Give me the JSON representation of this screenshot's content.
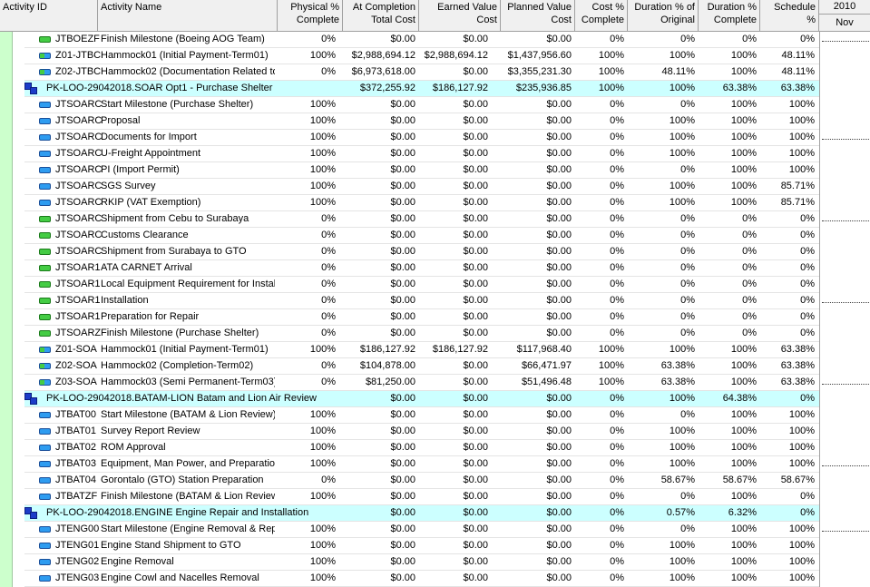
{
  "columns": {
    "activity_id": "Activity ID",
    "activity_name": "Activity Name",
    "physical_pct": [
      "Physical %",
      "Complete"
    ],
    "at_completion": [
      "At Completion",
      "Total Cost"
    ],
    "earned_value": [
      "Earned Value",
      "Cost"
    ],
    "planned_value": [
      "Planned Value",
      "Cost"
    ],
    "cost_pct": [
      "Cost %",
      "Complete"
    ],
    "duration_orig": [
      "Duration % of",
      "Original"
    ],
    "duration_comp": [
      "Duration %",
      "Complete"
    ],
    "schedule": [
      "Schedule",
      "%"
    ]
  },
  "timescale": {
    "year": "2010",
    "month": "Nov"
  },
  "colors": {
    "wbs_row": "#ccffff",
    "header": "#f0f0f0",
    "milestone": "#44cc44",
    "task": "#2e9cf0",
    "wbs_icon": "#1c3cc8"
  },
  "rows": [
    {
      "type": "milestone",
      "id": "JTBOEZF",
      "name": "Finish Milestone (Boeing AOG Team)",
      "pct": "0%",
      "atc": "$0.00",
      "ev": "$0.00",
      "pv": "$0.00",
      "cost": "0%",
      "dorig": "0%",
      "dcomp": "0%",
      "sched": "0%"
    },
    {
      "type": "hammock",
      "id": "Z01-JTBC",
      "name": "Hammock01 (Initial Payment-Term01)",
      "pct": "100%",
      "atc": "$2,988,694.12",
      "ev": "$2,988,694.12",
      "pv": "$1,437,956.60",
      "cost": "100%",
      "dorig": "100%",
      "dcomp": "100%",
      "sched": "48.11%"
    },
    {
      "type": "hammock",
      "id": "Z02-JTBC",
      "name": "Hammock02 (Documentation Related to",
      "pct": "0%",
      "atc": "$6,973,618.00",
      "ev": "$0.00",
      "pv": "$3,355,231.30",
      "cost": "100%",
      "dorig": "48.11%",
      "dcomp": "100%",
      "sched": "48.11%"
    },
    {
      "type": "wbs",
      "id": "PK-LOO-29042018.SOAR  Opt1 - Purchase Shelter",
      "name": "",
      "pct": "",
      "atc": "$372,255.92",
      "ev": "$186,127.92",
      "pv": "$235,936.85",
      "cost": "100%",
      "dorig": "100%",
      "dcomp": "63.38%",
      "sched": "63.38%"
    },
    {
      "type": "task",
      "id": "JTSOARC",
      "name": "Start Milestone (Purchase Shelter)",
      "pct": "100%",
      "atc": "$0.00",
      "ev": "$0.00",
      "pv": "$0.00",
      "cost": "0%",
      "dorig": "0%",
      "dcomp": "100%",
      "sched": "100%"
    },
    {
      "type": "task",
      "id": "JTSOARC",
      "name": "Proposal",
      "pct": "100%",
      "atc": "$0.00",
      "ev": "$0.00",
      "pv": "$0.00",
      "cost": "0%",
      "dorig": "100%",
      "dcomp": "100%",
      "sched": "100%"
    },
    {
      "type": "task",
      "id": "JTSOARC",
      "name": "Documents for Import",
      "pct": "100%",
      "atc": "$0.00",
      "ev": "$0.00",
      "pv": "$0.00",
      "cost": "0%",
      "dorig": "100%",
      "dcomp": "100%",
      "sched": "100%"
    },
    {
      "type": "task",
      "id": "JTSOARC",
      "name": "U-Freight Appointment",
      "pct": "100%",
      "atc": "$0.00",
      "ev": "$0.00",
      "pv": "$0.00",
      "cost": "0%",
      "dorig": "100%",
      "dcomp": "100%",
      "sched": "100%"
    },
    {
      "type": "task",
      "id": "JTSOARC",
      "name": "PI (Import Permit)",
      "pct": "100%",
      "atc": "$0.00",
      "ev": "$0.00",
      "pv": "$0.00",
      "cost": "0%",
      "dorig": "0%",
      "dcomp": "100%",
      "sched": "100%"
    },
    {
      "type": "task",
      "id": "JTSOARC",
      "name": "SGS Survey",
      "pct": "100%",
      "atc": "$0.00",
      "ev": "$0.00",
      "pv": "$0.00",
      "cost": "0%",
      "dorig": "100%",
      "dcomp": "100%",
      "sched": "85.71%"
    },
    {
      "type": "task",
      "id": "JTSOARC",
      "name": "RKIP (VAT Exemption)",
      "pct": "100%",
      "atc": "$0.00",
      "ev": "$0.00",
      "pv": "$0.00",
      "cost": "0%",
      "dorig": "100%",
      "dcomp": "100%",
      "sched": "85.71%"
    },
    {
      "type": "milestone",
      "id": "JTSOARC",
      "name": "Shipment from Cebu to Surabaya",
      "pct": "0%",
      "atc": "$0.00",
      "ev": "$0.00",
      "pv": "$0.00",
      "cost": "0%",
      "dorig": "0%",
      "dcomp": "0%",
      "sched": "0%"
    },
    {
      "type": "milestone",
      "id": "JTSOARC",
      "name": "Customs Clearance",
      "pct": "0%",
      "atc": "$0.00",
      "ev": "$0.00",
      "pv": "$0.00",
      "cost": "0%",
      "dorig": "0%",
      "dcomp": "0%",
      "sched": "0%"
    },
    {
      "type": "milestone",
      "id": "JTSOARC",
      "name": "Shipment from Surabaya to GTO",
      "pct": "0%",
      "atc": "$0.00",
      "ev": "$0.00",
      "pv": "$0.00",
      "cost": "0%",
      "dorig": "0%",
      "dcomp": "0%",
      "sched": "0%"
    },
    {
      "type": "milestone",
      "id": "JTSOAR1",
      "name": "ATA CARNET Arrival",
      "pct": "0%",
      "atc": "$0.00",
      "ev": "$0.00",
      "pv": "$0.00",
      "cost": "0%",
      "dorig": "0%",
      "dcomp": "0%",
      "sched": "0%"
    },
    {
      "type": "milestone",
      "id": "JTSOAR1",
      "name": "Local Equipment Requirement for Installa",
      "pct": "0%",
      "atc": "$0.00",
      "ev": "$0.00",
      "pv": "$0.00",
      "cost": "0%",
      "dorig": "0%",
      "dcomp": "0%",
      "sched": "0%"
    },
    {
      "type": "milestone",
      "id": "JTSOAR1",
      "name": "Installation",
      "pct": "0%",
      "atc": "$0.00",
      "ev": "$0.00",
      "pv": "$0.00",
      "cost": "0%",
      "dorig": "0%",
      "dcomp": "0%",
      "sched": "0%"
    },
    {
      "type": "milestone",
      "id": "JTSOAR1",
      "name": "Preparation for Repair",
      "pct": "0%",
      "atc": "$0.00",
      "ev": "$0.00",
      "pv": "$0.00",
      "cost": "0%",
      "dorig": "0%",
      "dcomp": "0%",
      "sched": "0%"
    },
    {
      "type": "milestone",
      "id": "JTSOARZ",
      "name": "Finish Milestone (Purchase Shelter)",
      "pct": "0%",
      "atc": "$0.00",
      "ev": "$0.00",
      "pv": "$0.00",
      "cost": "0%",
      "dorig": "0%",
      "dcomp": "0%",
      "sched": "0%"
    },
    {
      "type": "hammock",
      "id": "Z01-SOA",
      "name": "Hammock01 (Initial Payment-Term01)",
      "pct": "100%",
      "atc": "$186,127.92",
      "ev": "$186,127.92",
      "pv": "$117,968.40",
      "cost": "100%",
      "dorig": "100%",
      "dcomp": "100%",
      "sched": "63.38%"
    },
    {
      "type": "hammock",
      "id": "Z02-SOA",
      "name": "Hammock02 (Completion-Term02)",
      "pct": "0%",
      "atc": "$104,878.00",
      "ev": "$0.00",
      "pv": "$66,471.97",
      "cost": "100%",
      "dorig": "63.38%",
      "dcomp": "100%",
      "sched": "63.38%"
    },
    {
      "type": "hammock",
      "id": "Z03-SOA",
      "name": "Hammock03 (Semi Permanent-Term03)",
      "pct": "0%",
      "atc": "$81,250.00",
      "ev": "$0.00",
      "pv": "$51,496.48",
      "cost": "100%",
      "dorig": "63.38%",
      "dcomp": "100%",
      "sched": "63.38%"
    },
    {
      "type": "wbs",
      "id": "PK-LOO-29042018.BATAM-LION  Batam and Lion Air Review",
      "name": "",
      "pct": "",
      "atc": "$0.00",
      "ev": "$0.00",
      "pv": "$0.00",
      "cost": "0%",
      "dorig": "100%",
      "dcomp": "64.38%",
      "sched": "0%"
    },
    {
      "type": "task",
      "id": "JTBAT00",
      "name": "Start Milestone (BATAM & Lion Review)",
      "pct": "100%",
      "atc": "$0.00",
      "ev": "$0.00",
      "pv": "$0.00",
      "cost": "0%",
      "dorig": "0%",
      "dcomp": "100%",
      "sched": "100%"
    },
    {
      "type": "task",
      "id": "JTBAT01",
      "name": "Survey Report Review",
      "pct": "100%",
      "atc": "$0.00",
      "ev": "$0.00",
      "pv": "$0.00",
      "cost": "0%",
      "dorig": "100%",
      "dcomp": "100%",
      "sched": "100%"
    },
    {
      "type": "task",
      "id": "JTBAT02",
      "name": "ROM Approval",
      "pct": "100%",
      "atc": "$0.00",
      "ev": "$0.00",
      "pv": "$0.00",
      "cost": "0%",
      "dorig": "100%",
      "dcomp": "100%",
      "sched": "100%"
    },
    {
      "type": "task",
      "id": "JTBAT03",
      "name": "Equipment, Man Power, and Preparation",
      "pct": "100%",
      "atc": "$0.00",
      "ev": "$0.00",
      "pv": "$0.00",
      "cost": "0%",
      "dorig": "100%",
      "dcomp": "100%",
      "sched": "100%"
    },
    {
      "type": "task",
      "id": "JTBAT04",
      "name": "Gorontalo (GTO) Station Preparation",
      "pct": "0%",
      "atc": "$0.00",
      "ev": "$0.00",
      "pv": "$0.00",
      "cost": "0%",
      "dorig": "58.67%",
      "dcomp": "58.67%",
      "sched": "58.67%"
    },
    {
      "type": "task",
      "id": "JTBATZF",
      "name": "Finish Milestone (BATAM & Lion Review",
      "pct": "100%",
      "atc": "$0.00",
      "ev": "$0.00",
      "pv": "$0.00",
      "cost": "0%",
      "dorig": "0%",
      "dcomp": "100%",
      "sched": "0%"
    },
    {
      "type": "wbs",
      "id": "PK-LOO-29042018.ENGINE  Engine Repair and Installation",
      "name": "",
      "pct": "",
      "atc": "$0.00",
      "ev": "$0.00",
      "pv": "$0.00",
      "cost": "0%",
      "dorig": "0.57%",
      "dcomp": "6.32%",
      "sched": "0%"
    },
    {
      "type": "task",
      "id": "JTENG00",
      "name": "Start Milestone (Engine Removal & Repa",
      "pct": "100%",
      "atc": "$0.00",
      "ev": "$0.00",
      "pv": "$0.00",
      "cost": "0%",
      "dorig": "0%",
      "dcomp": "100%",
      "sched": "100%"
    },
    {
      "type": "task",
      "id": "JTENG01",
      "name": "Engine Stand Shipment to GTO",
      "pct": "100%",
      "atc": "$0.00",
      "ev": "$0.00",
      "pv": "$0.00",
      "cost": "0%",
      "dorig": "100%",
      "dcomp": "100%",
      "sched": "100%"
    },
    {
      "type": "task",
      "id": "JTENG02",
      "name": "Engine Removal",
      "pct": "100%",
      "atc": "$0.00",
      "ev": "$0.00",
      "pv": "$0.00",
      "cost": "0%",
      "dorig": "100%",
      "dcomp": "100%",
      "sched": "100%"
    },
    {
      "type": "task",
      "id": "JTENG03",
      "name": "Engine Cowl and Nacelles Removal",
      "pct": "100%",
      "atc": "$0.00",
      "ev": "$0.00",
      "pv": "$0.00",
      "cost": "0%",
      "dorig": "100%",
      "dcomp": "100%",
      "sched": "100%"
    }
  ]
}
